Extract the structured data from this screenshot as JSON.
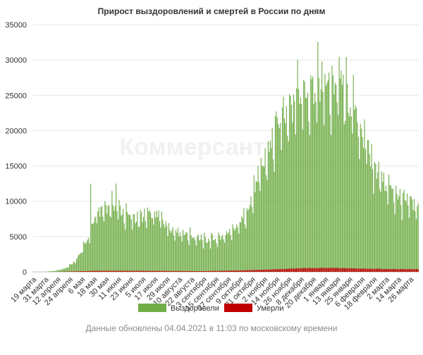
{
  "chart_data": {
    "type": "bar",
    "stacked": true,
    "title": "Прирост выздоровлений и смертей в России по дням",
    "watermark": "Коммерсантъ",
    "xlabel": "",
    "ylabel": "",
    "ylim": [
      0,
      35000
    ],
    "y_ticks": [
      0,
      5000,
      10000,
      15000,
      20000,
      25000,
      30000,
      35000
    ],
    "grid": "horizontal",
    "legend_position": "bottom",
    "x_start": "2020-03-19",
    "x_end": "2021-04-03",
    "x_tick_labels": [
      "19 марта",
      "31 марта",
      "12 апреля",
      "24 апреля",
      "6 мая",
      "18 мая",
      "30 мая",
      "11 июня",
      "23 июня",
      "5 июля",
      "17 июля",
      "29 июля",
      "10 августа",
      "22 августа",
      "3 сентября",
      "15 сентября",
      "27 сентября",
      "9 октября",
      "21 октября",
      "2 ноября",
      "14 ноября",
      "26 ноября",
      "8 декабря",
      "20 декабря",
      "1 января",
      "13 января",
      "25 января",
      "6 февраля",
      "18 февраля",
      "2 марта",
      "14 марта",
      "26 марта"
    ],
    "series": [
      {
        "name": "Выздоровели",
        "color": "#70ad47",
        "keypoints": [
          [
            "2020-03-19",
            0
          ],
          [
            "2020-03-31",
            20
          ],
          [
            "2020-04-10",
            150
          ],
          [
            "2020-04-20",
            500
          ],
          [
            "2020-04-30",
            1500
          ],
          [
            "2020-05-06",
            3000
          ],
          [
            "2020-05-13",
            5000
          ],
          [
            "2020-05-20",
            8000
          ],
          [
            "2020-05-28",
            9000
          ],
          [
            "2020-06-08",
            9500
          ],
          [
            "2020-06-18",
            8000
          ],
          [
            "2020-06-30",
            7500
          ],
          [
            "2020-07-12",
            8000
          ],
          [
            "2020-07-22",
            7800
          ],
          [
            "2020-08-03",
            6000
          ],
          [
            "2020-08-20",
            5200
          ],
          [
            "2020-09-05",
            4500
          ],
          [
            "2020-09-20",
            4800
          ],
          [
            "2020-10-01",
            5500
          ],
          [
            "2020-10-10",
            7000
          ],
          [
            "2020-10-20",
            10000
          ],
          [
            "2020-11-01",
            15000
          ],
          [
            "2020-11-12",
            19000
          ],
          [
            "2020-11-22",
            23000
          ],
          [
            "2020-12-02",
            24500
          ],
          [
            "2020-12-12",
            25500
          ],
          [
            "2020-12-24",
            26500
          ],
          [
            "2021-01-03",
            26000
          ],
          [
            "2021-01-12",
            26500
          ],
          [
            "2021-01-22",
            25000
          ],
          [
            "2021-02-01",
            22000
          ],
          [
            "2021-02-12",
            17500
          ],
          [
            "2021-02-22",
            14000
          ],
          [
            "2021-03-04",
            12000
          ],
          [
            "2021-03-16",
            10500
          ],
          [
            "2021-03-26",
            9500
          ],
          [
            "2021-04-03",
            9000
          ]
        ],
        "noted_peaks": [
          [
            "2020-05-15",
            12500
          ],
          [
            "2020-06-09",
            12500
          ],
          [
            "2020-12-05",
            30000
          ],
          [
            "2020-12-29",
            29800
          ],
          [
            "2021-01-17",
            28500
          ]
        ]
      },
      {
        "name": "Умерли",
        "color": "#c00000",
        "keypoints": [
          [
            "2020-03-19",
            0
          ],
          [
            "2020-04-10",
            5
          ],
          [
            "2020-05-01",
            80
          ],
          [
            "2020-05-20",
            150
          ],
          [
            "2020-07-01",
            150
          ],
          [
            "2020-09-01",
            100
          ],
          [
            "2020-10-10",
            200
          ],
          [
            "2020-11-10",
            350
          ],
          [
            "2020-12-15",
            550
          ],
          [
            "2021-01-05",
            580
          ],
          [
            "2021-02-10",
            450
          ],
          [
            "2021-03-10",
            400
          ],
          [
            "2021-04-03",
            380
          ]
        ]
      }
    ]
  },
  "legend": {
    "items": [
      {
        "label": "Выздоровели",
        "color": "#70ad47"
      },
      {
        "label": "Умерли",
        "color": "#c00000"
      }
    ]
  },
  "footer": {
    "text": "Данные обновлены 04.04.2021 в 11:03 по московскому времени"
  }
}
